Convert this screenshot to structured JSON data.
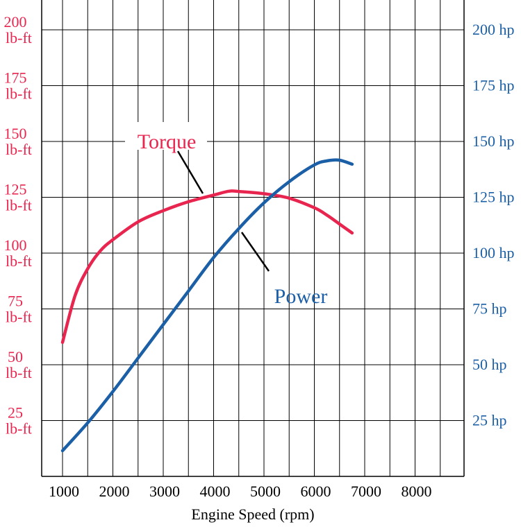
{
  "chart_data": {
    "type": "line",
    "xlabel": "Engine Speed (rpm)",
    "xlim": [
      600,
      9000
    ],
    "x_ticks": [
      1000,
      2000,
      3000,
      4000,
      5000,
      6000,
      7000,
      8000
    ],
    "x_tick_labels": [
      "1000",
      "2000",
      "3000",
      "4000",
      "5000",
      "6000",
      "7000",
      "8000"
    ],
    "y_left": {
      "unit": "lb-ft",
      "lim": [
        0,
        212
      ],
      "ticks": [
        25,
        50,
        75,
        100,
        125,
        150,
        175,
        200
      ],
      "tick_labels": [
        "25",
        "50",
        "75",
        "100",
        "125",
        "150",
        "175",
        "200"
      ]
    },
    "y_right": {
      "lim": [
        0,
        212
      ],
      "ticks": [
        25,
        50,
        75,
        100,
        125,
        150,
        175,
        200
      ],
      "tick_labels": [
        "25 hp",
        "50 hp",
        "75 hp",
        "100 hp",
        "125 hp",
        "150 hp",
        "175 hp",
        "200 hp"
      ]
    },
    "grid": true,
    "series": [
      {
        "name": "Torque",
        "axis": "left",
        "color": "#e8254f",
        "x": [
          1000,
          1250,
          1500,
          1750,
          2000,
          2500,
          3000,
          3500,
          4000,
          4300,
          4500,
          5000,
          5500,
          6000,
          6250,
          6500,
          6750
        ],
        "y": [
          60,
          81,
          93,
          101,
          106,
          114,
          119,
          123,
          126,
          127.7,
          127.6,
          126.6,
          124.6,
          120.3,
          117,
          113,
          109
        ]
      },
      {
        "name": "Power",
        "axis": "right",
        "color": "#1b5fa6",
        "x": [
          1000,
          1500,
          2000,
          2500,
          3000,
          3500,
          4000,
          4500,
          5000,
          5500,
          6000,
          6250,
          6500,
          6750
        ],
        "y": [
          11.5,
          24,
          38,
          53,
          68,
          83,
          98,
          111,
          122.5,
          132,
          139.5,
          141.3,
          141.6,
          139.8
        ]
      }
    ],
    "annotations": [
      {
        "text": "Torque",
        "series": "Torque"
      },
      {
        "text": "Power",
        "series": "Power"
      }
    ]
  }
}
